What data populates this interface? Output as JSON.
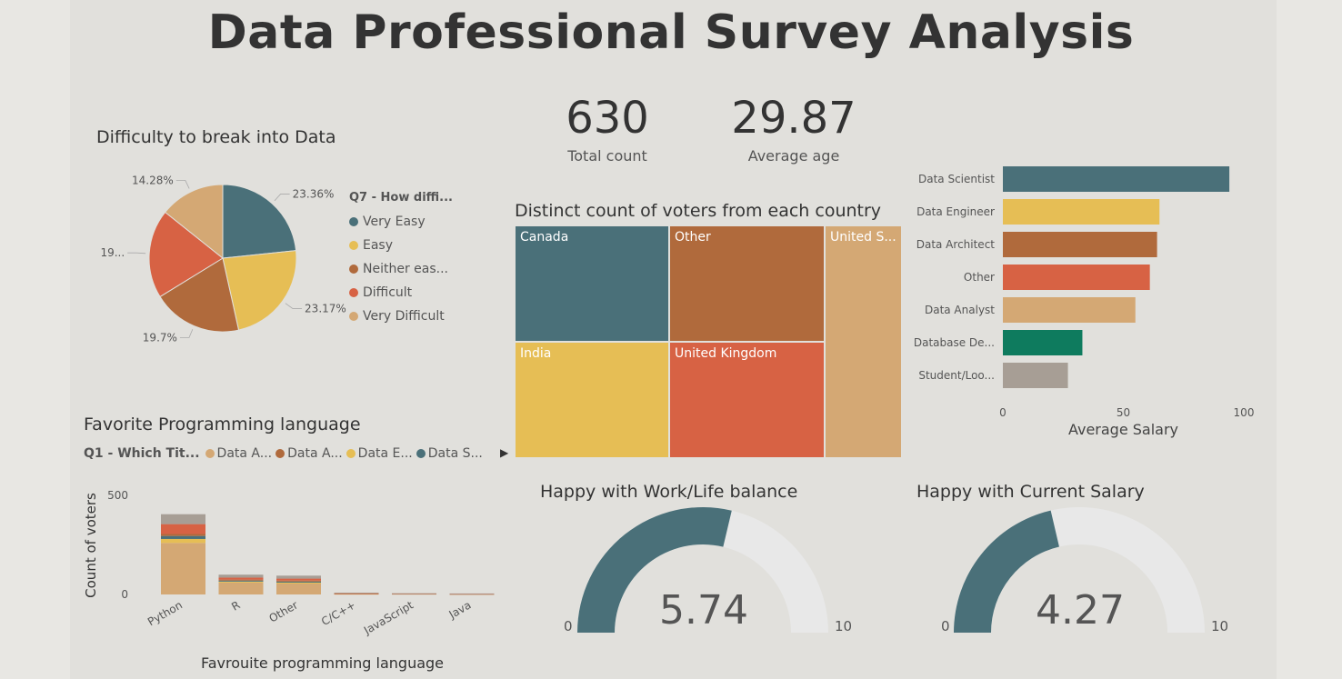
{
  "page": {
    "title": "Data Professional Survey Analysis"
  },
  "colors": {
    "teal": "#4a7079",
    "yellow": "#e6be55",
    "brown": "#b06a3c",
    "red": "#d76244",
    "tan": "#d4a874",
    "green": "#0e7b5e",
    "gray": "#a79e95",
    "gauge_track": "#e8e8e8"
  },
  "kpis": [
    {
      "value": "630",
      "label": "Total count"
    },
    {
      "value": "29.87",
      "label": "Average age"
    }
  ],
  "difficulty": {
    "title": "Difficulty to break into Data",
    "legend_title": "Q7 - How diffi...",
    "slice_labels": [
      "23.36%",
      "23.17%",
      "19.7%",
      "19...",
      "14.28%"
    ],
    "chart_data": {
      "type": "pie",
      "categories": [
        "Very Easy",
        "Easy",
        "Neither eas...",
        "Difficult",
        "Very Difficult"
      ],
      "legend_labels": [
        "Very Easy",
        "Easy",
        "Neither eas...",
        "Difficult",
        "Very Difficult"
      ],
      "values": [
        23.36,
        23.17,
        19.7,
        19.49,
        14.28
      ],
      "colors": [
        "#4a7079",
        "#e6be55",
        "#b06a3c",
        "#d76244",
        "#d4a874"
      ]
    }
  },
  "treemap": {
    "title": "Distinct count of voters from each country",
    "chart_data": {
      "type": "treemap",
      "categories": [
        "Canada",
        "Other",
        "United S...",
        "India",
        "United Kingdom"
      ],
      "labels": [
        "Canada",
        "Other",
        "United S...",
        "India",
        "United Kingdom"
      ],
      "colors": [
        "#4a7079",
        "#b06a3c",
        "#d4a874",
        "#e6be55",
        "#d76244"
      ]
    }
  },
  "salary": {
    "xlabel": "Average Salary",
    "ticks": [
      "0",
      "50",
      "100"
    ],
    "chart_data": {
      "type": "bar",
      "orientation": "horizontal",
      "categories": [
        "Data Scientist",
        "Data Engineer",
        "Data Architect",
        "Other",
        "Data Analyst",
        "Database De...",
        "Student/Loo..."
      ],
      "values": [
        94,
        65,
        64,
        61,
        55,
        33,
        27
      ],
      "colors": [
        "#4a7079",
        "#e6be55",
        "#b06a3c",
        "#d76244",
        "#d4a874",
        "#0e7b5e",
        "#a79e95"
      ],
      "xlim": [
        0,
        110
      ]
    }
  },
  "language": {
    "title": "Favorite Programming language",
    "legend_title": "Q1 - Which Tit...",
    "legend": [
      "Data A...",
      "Data A...",
      "Data E...",
      "Data S..."
    ],
    "legend_colors": [
      "#d4a874",
      "#b06a3c",
      "#e6be55",
      "#4a7079"
    ],
    "ylabel": "Count of voters",
    "xlabel": "Favrouite programming language",
    "yticks": [
      "500",
      "0"
    ],
    "chart_data": {
      "type": "bar",
      "stacked": true,
      "categories": [
        "Python",
        "R",
        "Other",
        "C/C++",
        "JavaScript",
        "Java"
      ],
      "ylim": [
        0,
        500
      ],
      "series": [
        {
          "name": "Data A...",
          "color": "#d4a874",
          "values": [
            260,
            60,
            55,
            3,
            3,
            2
          ]
        },
        {
          "name": "Data E...",
          "color": "#e6be55",
          "values": [
            20,
            5,
            5,
            0,
            0,
            0
          ]
        },
        {
          "name": "Data S...",
          "color": "#4a7079",
          "values": [
            15,
            5,
            5,
            0,
            0,
            0
          ]
        },
        {
          "name": "Data A...",
          "color": "#b06a3c",
          "values": [
            10,
            5,
            5,
            2,
            1,
            1
          ]
        },
        {
          "color": "#d76244",
          "values": [
            50,
            10,
            10,
            2,
            1,
            1
          ]
        },
        {
          "color": "#a79e95",
          "values": [
            50,
            15,
            15,
            2,
            1,
            1
          ]
        }
      ]
    }
  },
  "gauges": [
    {
      "title": "Happy with Work/Life balance",
      "value": 5.74,
      "display": "5.74",
      "min": "0",
      "max": "10",
      "range": [
        0,
        10
      ]
    },
    {
      "title": "Happy with Current Salary",
      "value": 4.27,
      "display": "4.27",
      "min": "0",
      "max": "10",
      "range": [
        0,
        10
      ]
    }
  ]
}
